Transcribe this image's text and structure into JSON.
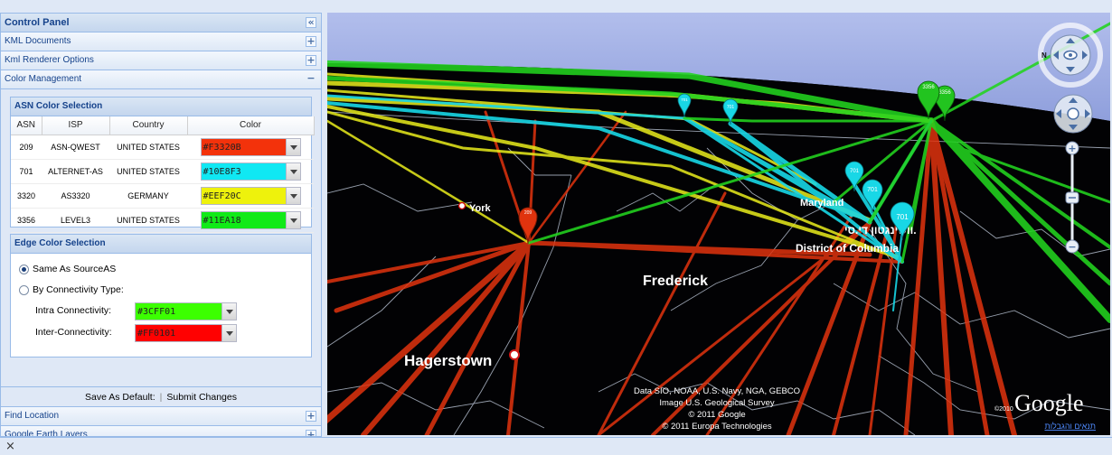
{
  "control_panel": {
    "title": "Control Panel",
    "collapse_icon": "double-chevron-left-icon",
    "sections": {
      "kml_documents": "KML Documents",
      "kml_renderer_options": "Kml Renderer Options",
      "color_management": "Color Management",
      "find_location": "Find Location",
      "google_earth_layers": "Google Earth Layers"
    },
    "expand_symbol": "+",
    "collapse_symbol": "−",
    "collapse_panel_symbol": "«"
  },
  "asn_color_selection": {
    "title": "ASN Color Selection",
    "columns": [
      "ASN",
      "ISP",
      "Country",
      "Color"
    ],
    "rows": [
      {
        "asn": "209",
        "isp": "ASN-QWEST",
        "country": "UNITED STATES",
        "color": "#f3320b"
      },
      {
        "asn": "701",
        "isp": "ALTERNET-AS",
        "country": "UNITED STATES",
        "color": "#10e8f3"
      },
      {
        "asn": "3320",
        "isp": "AS3320",
        "country": "GERMANY",
        "color": "#eef20c"
      },
      {
        "asn": "3356",
        "isp": "LEVEL3",
        "country": "UNITED STATES",
        "color": "#11ea18"
      }
    ]
  },
  "edge_color_selection": {
    "title": "Edge Color Selection",
    "option_same_as_source": "Same As SourceAS",
    "option_by_connectivity": "By Connectivity Type:",
    "selected_option": "same_as_source",
    "intra_label": "Intra Connectivity:",
    "intra_value": "#3CFF01",
    "inter_label": "Inter-Connectivity:",
    "inter_value": "#FF0101"
  },
  "buttons": {
    "save_default": "Save As Default:",
    "submit": "Submit Changes"
  },
  "map": {
    "place_labels": {
      "york": "York",
      "frederick": "Frederick",
      "hagerstown": "Hagerstown",
      "maryland": "Maryland",
      "district_of_columbia": "District of Columbia",
      "washington_hebrew": "וושינגטון די.סי."
    },
    "markers": {
      "york_marker": "209",
      "upper_701_a": "701",
      "upper_701_b": "701",
      "dc_701_a": "701",
      "dc_701_b": "701",
      "dc_701_c": "701",
      "ne_3356": "3356",
      "ne_3356_b": "3356"
    },
    "attribution": [
      "Data SIO, NOAA, U.S. Navy, NGA, GEBCO",
      "Image U.S. Geological Survey",
      "© 2011 Google",
      "© 2011 Europa Technologies"
    ],
    "copyright_year": "©2010",
    "google_logo": "Google",
    "terms_link": "תנאים והגבלות",
    "compass_letter": "N",
    "zoom_in": "+",
    "zoom_out": "−",
    "colors": {
      "asn_209": "#f3320b",
      "asn_701": "#10e8f3",
      "asn_3320": "#eef20c",
      "asn_3356": "#11ea18",
      "sky": "#a9b6e8",
      "ground": "#000000"
    }
  },
  "status_bar": {
    "close_symbol": "×"
  }
}
